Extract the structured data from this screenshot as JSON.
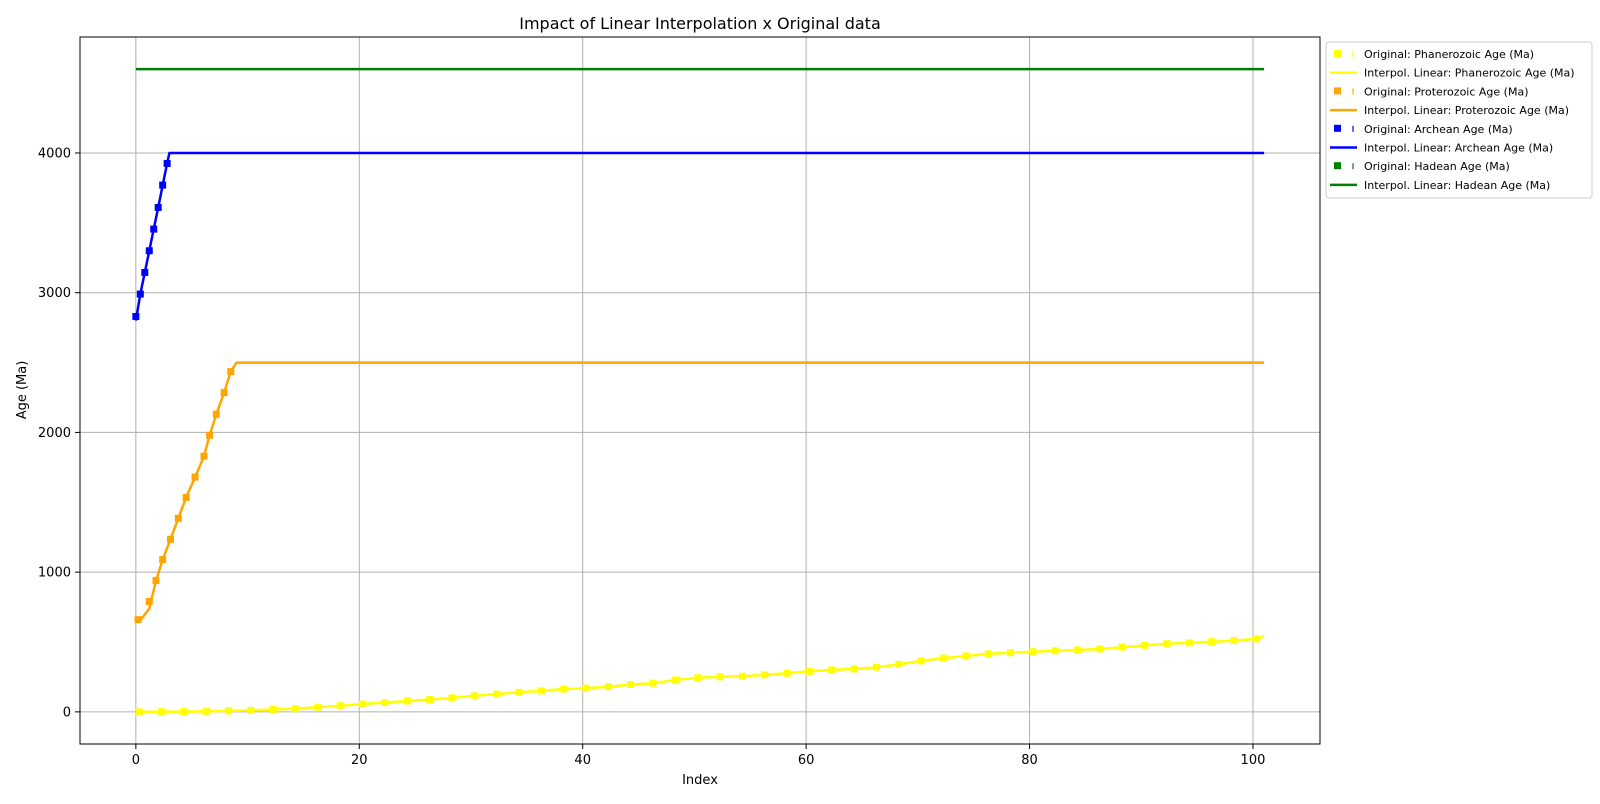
{
  "chart_data": {
    "type": "line",
    "title": "Impact of Linear Interpolation x Original data",
    "xlabel": "Index",
    "ylabel": "Age (Ma)",
    "xlim": [
      -5,
      106
    ],
    "ylim": [
      -230,
      4830
    ],
    "xticks": [
      0,
      20,
      40,
      60,
      80,
      100
    ],
    "yticks": [
      0,
      1000,
      2000,
      3000,
      4000
    ],
    "grid": true,
    "legend_position": "outside-right",
    "series": [
      {
        "key": "phanerozoic",
        "color": "#ffff00",
        "original_name": "Original: Phanerozoic Age (Ma)",
        "interp_name": "Interpol. Linear: Phanerozoic Age (Ma)",
        "original": [
          [
            0.3,
            0
          ],
          [
            2.3,
            1
          ],
          [
            4.3,
            2
          ],
          [
            6.3,
            3
          ],
          [
            8.3,
            7
          ],
          [
            10.3,
            11
          ],
          [
            12.3,
            17
          ],
          [
            14.3,
            23
          ],
          [
            16.3,
            33
          ],
          [
            18.3,
            44
          ],
          [
            20.3,
            56
          ],
          [
            22.3,
            66
          ],
          [
            24.3,
            78
          ],
          [
            26.3,
            88
          ],
          [
            28.3,
            100
          ],
          [
            30.3,
            115
          ],
          [
            32.3,
            127
          ],
          [
            34.3,
            140
          ],
          [
            36.3,
            150
          ],
          [
            38.3,
            163
          ],
          [
            40.3,
            170
          ],
          [
            42.3,
            180
          ],
          [
            44.3,
            196
          ],
          [
            46.3,
            205
          ],
          [
            48.3,
            228
          ],
          [
            50.3,
            244
          ],
          [
            52.3,
            251
          ],
          [
            54.3,
            255
          ],
          [
            56.3,
            265
          ],
          [
            58.3,
            276
          ],
          [
            60.3,
            290
          ],
          [
            62.3,
            300
          ],
          [
            64.3,
            307
          ],
          [
            66.3,
            320
          ],
          [
            68.3,
            340
          ],
          [
            70.3,
            365
          ],
          [
            72.3,
            385
          ],
          [
            74.3,
            400
          ],
          [
            76.3,
            415
          ],
          [
            78.3,
            423
          ],
          [
            80.3,
            430
          ],
          [
            82.3,
            437
          ],
          [
            84.3,
            443
          ],
          [
            86.3,
            450
          ],
          [
            88.3,
            463
          ],
          [
            90.3,
            476
          ],
          [
            92.3,
            488
          ],
          [
            94.3,
            494
          ],
          [
            96.3,
            502
          ],
          [
            98.3,
            510
          ],
          [
            100.3,
            522
          ]
        ],
        "interp": [
          [
            0,
            0
          ],
          [
            2.3,
            1
          ],
          [
            4.3,
            2
          ],
          [
            6.3,
            3
          ],
          [
            8.3,
            7
          ],
          [
            10.3,
            11
          ],
          [
            12.3,
            17
          ],
          [
            14.3,
            23
          ],
          [
            16.3,
            33
          ],
          [
            18.3,
            44
          ],
          [
            20.3,
            56
          ],
          [
            22.3,
            66
          ],
          [
            24.3,
            78
          ],
          [
            26.3,
            88
          ],
          [
            28.3,
            100
          ],
          [
            30.3,
            115
          ],
          [
            32.3,
            127
          ],
          [
            34.3,
            140
          ],
          [
            36.3,
            150
          ],
          [
            38.3,
            163
          ],
          [
            40.3,
            170
          ],
          [
            42.3,
            180
          ],
          [
            44.3,
            196
          ],
          [
            46.3,
            205
          ],
          [
            48.3,
            228
          ],
          [
            50.3,
            244
          ],
          [
            52.3,
            251
          ],
          [
            54.3,
            255
          ],
          [
            56.3,
            265
          ],
          [
            58.3,
            276
          ],
          [
            60.3,
            290
          ],
          [
            62.3,
            300
          ],
          [
            64.3,
            307
          ],
          [
            66.3,
            320
          ],
          [
            68.3,
            340
          ],
          [
            70.3,
            365
          ],
          [
            72.3,
            385
          ],
          [
            74.3,
            400
          ],
          [
            76.3,
            415
          ],
          [
            78.3,
            423
          ],
          [
            80.3,
            430
          ],
          [
            82.3,
            437
          ],
          [
            84.3,
            443
          ],
          [
            86.3,
            450
          ],
          [
            88.3,
            463
          ],
          [
            90.3,
            476
          ],
          [
            92.3,
            488
          ],
          [
            94.3,
            494
          ],
          [
            96.3,
            502
          ],
          [
            98.3,
            510
          ],
          [
            100.3,
            522
          ],
          [
            101,
            541
          ]
        ]
      },
      {
        "key": "proterozoic",
        "color": "#ffa500",
        "original_name": "Original: Proterozoic Age (Ma)",
        "interp_name": "Interpol. Linear: Proterozoic Age (Ma)",
        "original": [
          [
            0.2,
            660
          ],
          [
            1.2,
            790
          ],
          [
            1.8,
            940
          ],
          [
            2.4,
            1090
          ],
          [
            3.1,
            1235
          ],
          [
            3.8,
            1385
          ],
          [
            4.5,
            1535
          ],
          [
            5.3,
            1680
          ],
          [
            6.1,
            1830
          ],
          [
            6.6,
            1980
          ],
          [
            7.2,
            2130
          ],
          [
            7.9,
            2285
          ],
          [
            8.5,
            2435
          ]
        ],
        "interp": [
          [
            0,
            650
          ],
          [
            0.5,
            665
          ],
          [
            1.2,
            740
          ],
          [
            1.8,
            940
          ],
          [
            2.4,
            1090
          ],
          [
            3.1,
            1235
          ],
          [
            3.8,
            1385
          ],
          [
            4.5,
            1535
          ],
          [
            5.3,
            1680
          ],
          [
            6.1,
            1830
          ],
          [
            6.6,
            1980
          ],
          [
            7.2,
            2130
          ],
          [
            7.9,
            2285
          ],
          [
            8.5,
            2435
          ],
          [
            9,
            2500
          ],
          [
            101,
            2500
          ]
        ]
      },
      {
        "key": "archean",
        "color": "#0000ff",
        "original_name": "Original: Archean Age (Ma)",
        "interp_name": "Interpol. Linear: Archean Age (Ma)",
        "original": [
          [
            0,
            2830
          ],
          [
            0.4,
            2990
          ],
          [
            0.8,
            3145
          ],
          [
            1.2,
            3300
          ],
          [
            1.6,
            3455
          ],
          [
            2,
            3610
          ],
          [
            2.4,
            3770
          ],
          [
            2.8,
            3925
          ]
        ],
        "interp": [
          [
            0,
            2800
          ],
          [
            0.4,
            2990
          ],
          [
            0.8,
            3145
          ],
          [
            1.2,
            3300
          ],
          [
            1.6,
            3455
          ],
          [
            2,
            3610
          ],
          [
            2.4,
            3770
          ],
          [
            2.8,
            3925
          ],
          [
            3,
            4000
          ],
          [
            101,
            4000
          ]
        ]
      },
      {
        "key": "hadean",
        "color": "#008000",
        "original_name": "Original: Hadean Age (Ma)",
        "interp_name": "Interpol. Linear: Hadean Age (Ma)",
        "original": [],
        "interp": [
          [
            0,
            4600
          ],
          [
            101,
            4600
          ]
        ]
      }
    ]
  }
}
